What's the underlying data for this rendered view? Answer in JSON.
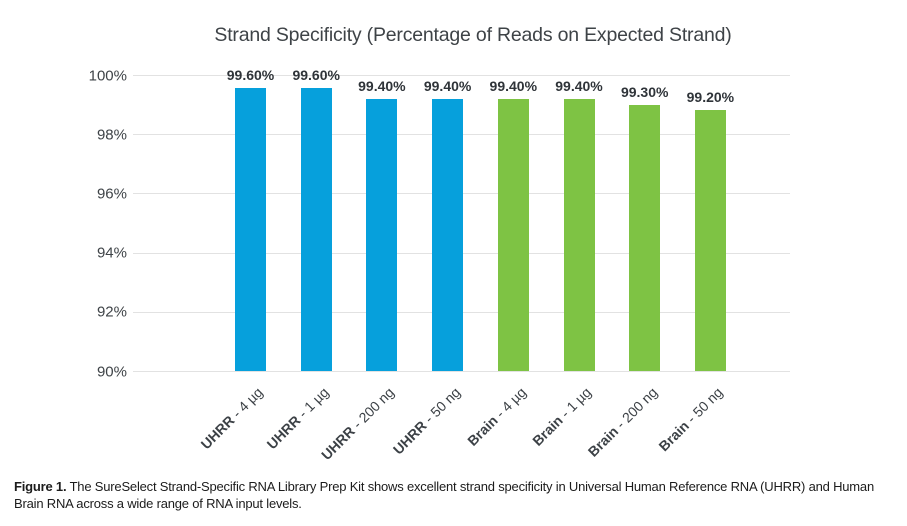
{
  "chart_data": {
    "type": "bar",
    "title": "Strand Specificity (Percentage of Reads on Expected Strand)",
    "categories": [
      {
        "bold": "UHRR",
        "rest": " - 4 µg"
      },
      {
        "bold": "UHRR",
        "rest": " - 1 µg"
      },
      {
        "bold": "UHRR",
        "rest": " - 200 ng"
      },
      {
        "bold": "UHRR",
        "rest": " - 50 ng"
      },
      {
        "bold": "Brain",
        "rest": " - 4 µg"
      },
      {
        "bold": "Brain",
        "rest": " - 1 µg"
      },
      {
        "bold": "Brain",
        "rest": " - 200 ng"
      },
      {
        "bold": "Brain",
        "rest": " - 50 ng"
      }
    ],
    "values": [
      99.6,
      99.6,
      99.4,
      99.4,
      99.4,
      99.4,
      99.3,
      99.2
    ],
    "value_labels": [
      "99.60%",
      "99.60%",
      "99.40%",
      "99.40%",
      "99.40%",
      "99.40%",
      "99.30%",
      "99.20%"
    ],
    "bar_colors": [
      "#06a0dc",
      "#06a0dc",
      "#06a0dc",
      "#06a0dc",
      "#7ec344",
      "#7ec344",
      "#7ec344",
      "#7ec344"
    ],
    "series_colors": {
      "UHRR": "#06a0dc",
      "Brain": "#7ec344"
    },
    "y_ticks": [
      "100%",
      "98%",
      "96%",
      "94%",
      "92%",
      "90%"
    ],
    "ylim": [
      90,
      100
    ],
    "grid": true,
    "legend": "none",
    "xlabel": "",
    "ylabel": ""
  },
  "caption": {
    "label": "Figure 1.",
    "text": " The SureSelect Strand-Specific RNA Library Prep Kit shows excellent strand specificity in Universal Human Reference RNA (UHRR) and Human Brain RNA across a wide range of RNA input levels."
  }
}
